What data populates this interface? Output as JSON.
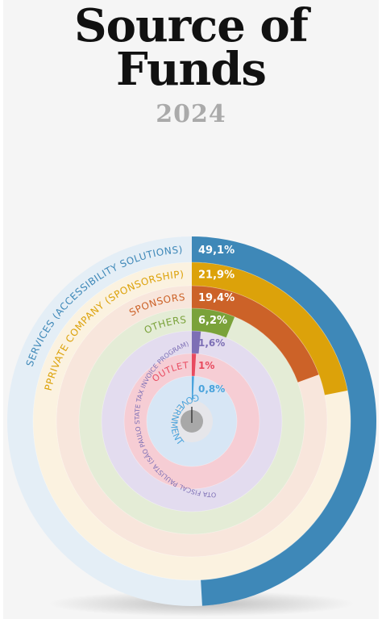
{
  "header": {
    "title_line1": "Source of",
    "title_line2": "Funds",
    "year": "2024"
  },
  "chart_data": {
    "type": "radial-bar",
    "title": "Source of Funds 2024",
    "unit": "%",
    "series": [
      {
        "name": "SERVICES (ACCESSIBILITY SOLUTIONS)",
        "value": 49.1,
        "label": "49,1%",
        "color": "#3e88b8",
        "track": "#e4eef6"
      },
      {
        "name": "PPRIVATE COMPANY (SPONSORSHIP)",
        "value": 21.9,
        "label": "21,9%",
        "color": "#dca20a",
        "track": "#fbf2e0"
      },
      {
        "name": "SPONSORS",
        "value": 19.4,
        "label": "19,4%",
        "color": "#cc6228",
        "track": "#f8e6dc"
      },
      {
        "name": "OTHERS",
        "value": 6.2,
        "label": "6,2%",
        "color": "#7aa23a",
        "track": "#e4ecd6"
      },
      {
        "name": "NOTA FISCAL PAULISTA (SÃO PAULO STATE TAX INVOICE PROGRAM)",
        "value": 1.6,
        "label": "1,6%",
        "color": "#7d6fb5",
        "track": "#e3dcef"
      },
      {
        "name": "OUTLET",
        "value": 1,
        "label": "1%",
        "color": "#e84a5f",
        "track": "#f6cdd4"
      },
      {
        "name": "GOVERNMENT",
        "value": 0.8,
        "label": "0,8%",
        "color": "#4aa3dc",
        "track": "#d7e6f5"
      }
    ],
    "center_color": "#a8a8a8"
  }
}
